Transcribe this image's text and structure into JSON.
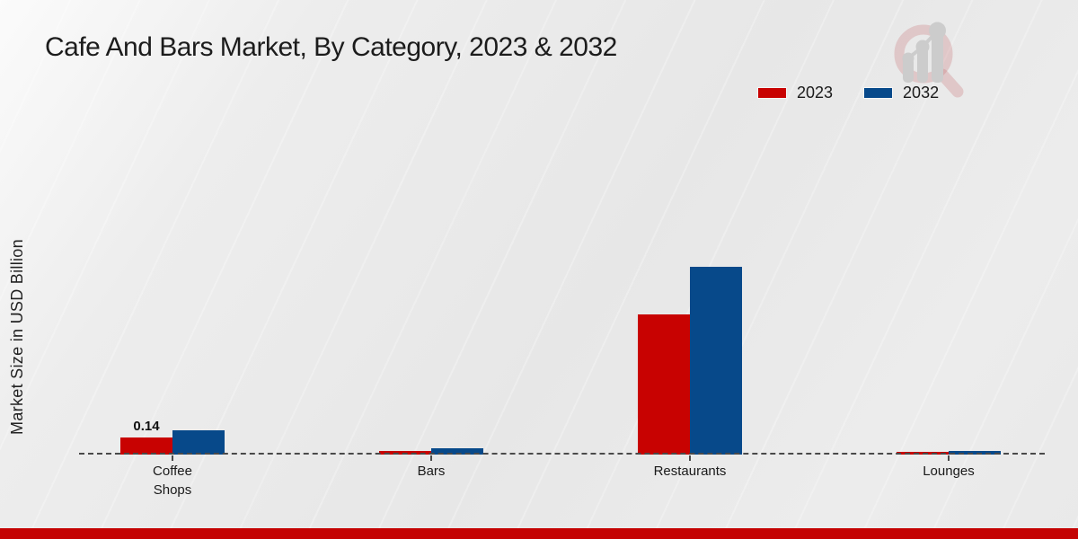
{
  "chart_data": {
    "type": "bar",
    "title": "Cafe And Bars Market, By Category, 2023 & 2032",
    "ylabel": "Market Size in USD Billion",
    "xlabel": "",
    "categories": [
      "Coffee Shops",
      "Bars",
      "Restaurants",
      "Lounges"
    ],
    "category_lines": [
      [
        "Coffee",
        "Shops"
      ],
      [
        "Bars"
      ],
      [
        "Restaurants"
      ],
      [
        "Lounges"
      ]
    ],
    "series": [
      {
        "name": "2023",
        "color": "#c80201",
        "values": [
          0.14,
          0.03,
          1.15,
          0.02
        ]
      },
      {
        "name": "2032",
        "color": "#07498a",
        "values": [
          0.2,
          0.055,
          1.54,
          0.03
        ]
      }
    ],
    "data_labels": [
      {
        "category": "Coffee Shops",
        "series": "2023",
        "text": "0.14"
      }
    ],
    "ylim": [
      0,
      2.8
    ],
    "grid": false,
    "y_axis_ticks_visible": false,
    "baseline_style": "dashed",
    "legend_position": "top-right"
  },
  "branding": {
    "logo_name": "market-research-magnifier-logo",
    "footer_color": "#c40303",
    "logo_ring_color": "rgba(190,85,87,0.26)",
    "logo_bar_color": "#c9c9c9"
  },
  "colors": {
    "background": "#e9e9e9",
    "title_text": "#1c1c1c",
    "axis_text": "#222222",
    "baseline": "#4a4a4a",
    "series_2023": "#c80201",
    "series_2032": "#07498a"
  }
}
